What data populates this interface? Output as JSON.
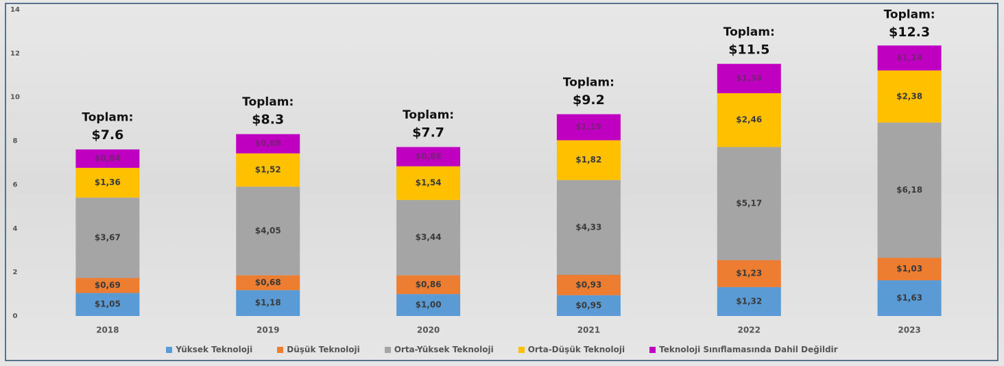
{
  "chart_data": {
    "type": "stacked-bar",
    "categories": [
      "2018",
      "2019",
      "2020",
      "2021",
      "2022",
      "2023"
    ],
    "series": [
      {
        "name": "Yüksek Teknoloji",
        "color": "#5b9bd5",
        "values": [
          1.05,
          1.18,
          1.0,
          0.95,
          1.32,
          1.63
        ],
        "value_labels": [
          "$1,05",
          "$1,18",
          "$1,00",
          "$0,95",
          "$1,32",
          "$1,63"
        ]
      },
      {
        "name": "Düşük Teknoloji",
        "color": "#ed7d31",
        "values": [
          0.69,
          0.68,
          0.86,
          0.93,
          1.23,
          1.03
        ],
        "value_labels": [
          "$0,69",
          "$0,68",
          "$0,86",
          "$0,93",
          "$1,23",
          "$1,03"
        ]
      },
      {
        "name": "Orta-Yüksek Teknoloji",
        "color": "#a5a5a5",
        "values": [
          3.67,
          4.05,
          3.44,
          4.33,
          5.17,
          6.18
        ],
        "value_labels": [
          "$3,67",
          "$4,05",
          "$3,44",
          "$4,33",
          "$5,17",
          "$6,18"
        ]
      },
      {
        "name": "Orta-Düşük Teknoloji",
        "color": "#ffc000",
        "values": [
          1.36,
          1.52,
          1.54,
          1.82,
          2.46,
          2.38
        ],
        "value_labels": [
          "$1,36",
          "$1,52",
          "$1,54",
          "$1,82",
          "$2,46",
          "$2,38"
        ]
      },
      {
        "name": "Teknoloji Sınıflamasında Dahil Değildir",
        "color": "#c000c0",
        "values": [
          0.84,
          0.88,
          0.88,
          1.19,
          1.34,
          1.14
        ],
        "value_labels": [
          "$0,84",
          "$0,88",
          "$0,88",
          "$1,19",
          "$1,34",
          "$1,14"
        ]
      }
    ],
    "totals": {
      "prefix": "Toplam:",
      "values": [
        7.6,
        8.3,
        7.7,
        9.2,
        11.5,
        12.3
      ],
      "value_labels": [
        "$7.6",
        "$8.3",
        "$7.7",
        "$9.2",
        "$11.5",
        "$12.3"
      ]
    },
    "ylim": [
      0,
      14
    ],
    "yticks": [
      0,
      2,
      4,
      6,
      8,
      10,
      12,
      14
    ],
    "grid": false,
    "legend": "bottom"
  }
}
